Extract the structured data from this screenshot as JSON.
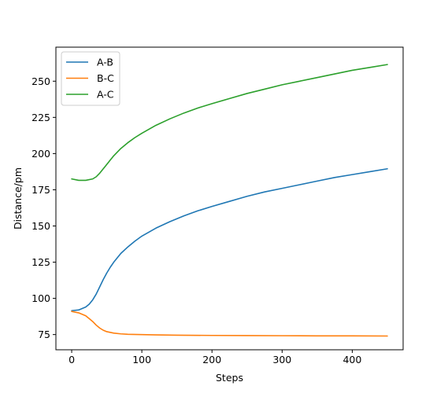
{
  "chart_data": {
    "type": "line",
    "title": "",
    "xlabel": "Steps",
    "ylabel": "Distance/pm",
    "xlim": [
      -22.5,
      472.5
    ],
    "ylim": [
      64.5,
      273.5
    ],
    "xticks": [
      0,
      100,
      200,
      300,
      400
    ],
    "yticks": [
      75,
      100,
      125,
      150,
      175,
      200,
      225,
      250
    ],
    "grid": false,
    "legend_position": "top-left",
    "series": [
      {
        "name": "A-B",
        "color": "#1f77b4",
        "x": [
          0,
          10,
          20,
          25,
          30,
          35,
          40,
          45,
          50,
          55,
          60,
          70,
          80,
          90,
          100,
          120,
          140,
          160,
          180,
          200,
          225,
          250,
          275,
          300,
          325,
          350,
          375,
          400,
          425,
          450
        ],
        "y": [
          91.5,
          92,
          94,
          96,
          99,
          103,
          108,
          113,
          117.5,
          121.5,
          125,
          131,
          135.5,
          139.5,
          143,
          148.5,
          153,
          157,
          160.5,
          163.5,
          167,
          170.5,
          173.5,
          176,
          178.5,
          181,
          183.5,
          185.5,
          187.5,
          189.5
        ]
      },
      {
        "name": "B-C",
        "color": "#ff7f0e",
        "x": [
          0,
          10,
          20,
          25,
          30,
          35,
          40,
          45,
          50,
          60,
          70,
          80,
          100,
          120,
          150,
          200,
          250,
          300,
          350,
          400,
          450
        ],
        "y": [
          91,
          90,
          88,
          86,
          84,
          81.5,
          79.5,
          78,
          77,
          76,
          75.5,
          75.2,
          75,
          74.8,
          74.6,
          74.4,
          74.3,
          74.2,
          74.1,
          74.1,
          74
        ]
      },
      {
        "name": "A-C",
        "color": "#2ca02c",
        "x": [
          0,
          10,
          20,
          30,
          35,
          40,
          45,
          50,
          55,
          60,
          70,
          80,
          90,
          100,
          120,
          140,
          160,
          180,
          200,
          225,
          250,
          275,
          300,
          325,
          350,
          375,
          400,
          425,
          450
        ],
        "y": [
          182.5,
          181.5,
          181.5,
          182.5,
          184,
          186.5,
          189.5,
          192.5,
          195.5,
          198.5,
          203.5,
          207.5,
          211,
          214,
          219.5,
          224,
          228,
          231.5,
          234.5,
          238,
          241.5,
          244.5,
          247.5,
          250,
          252.5,
          255,
          257.5,
          259.5,
          261.5
        ]
      }
    ]
  }
}
